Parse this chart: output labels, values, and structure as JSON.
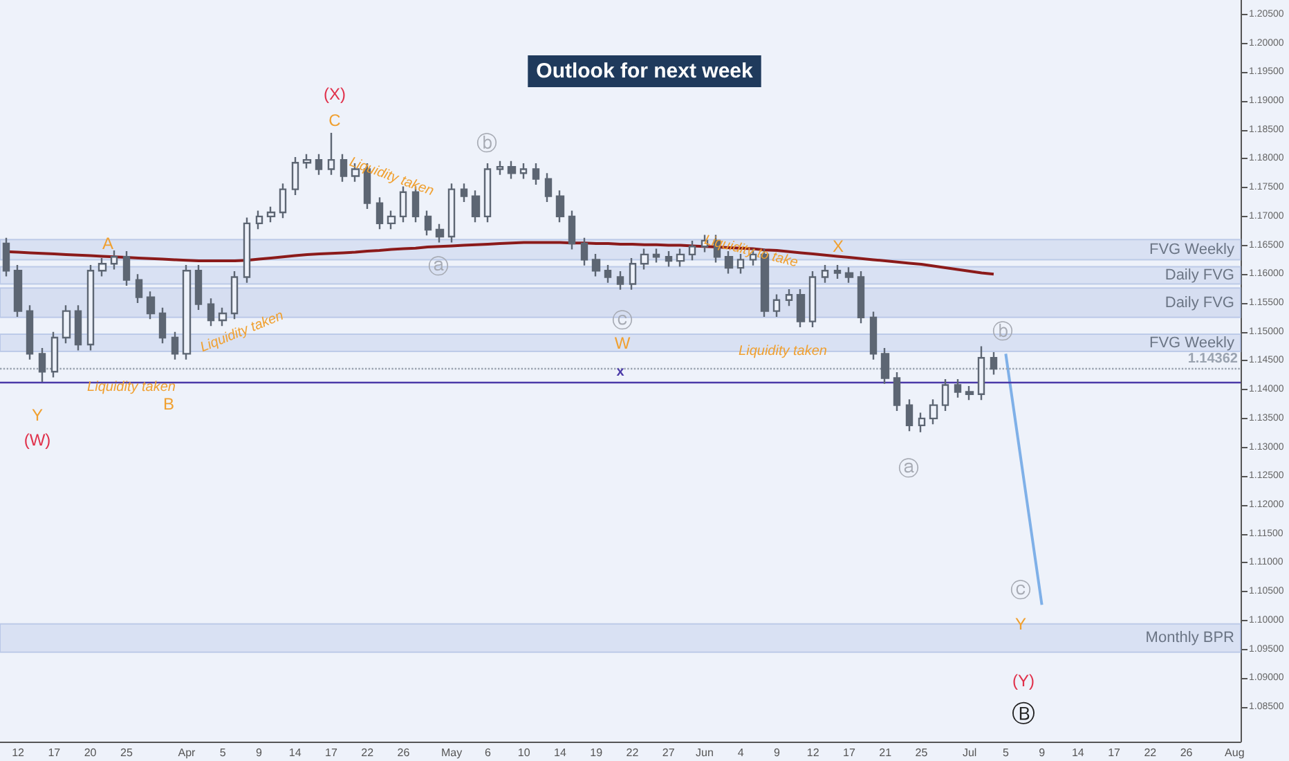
{
  "chart_data": {
    "type": "candlestick",
    "title": "Outlook for next week",
    "color": "#5d6673",
    "categories": [
      null,
      "12",
      null,
      null,
      "17",
      null,
      null,
      "20",
      null,
      null,
      "25",
      null,
      null,
      null,
      null,
      "Apr",
      null,
      null,
      "5",
      null,
      null,
      "9",
      null,
      null,
      "14",
      null,
      null,
      "17",
      null,
      null,
      "22",
      null,
      null,
      "26",
      null,
      null,
      null,
      "May",
      null,
      null,
      "6",
      null,
      null,
      "10",
      null,
      null,
      "14",
      null,
      null,
      "19",
      null,
      null,
      "22",
      null,
      null,
      "27",
      null,
      null,
      "Jun",
      null,
      null,
      "4",
      null,
      null,
      "9",
      null,
      null,
      "12",
      null,
      null,
      "17",
      null,
      null,
      "21",
      null,
      null,
      "25",
      null,
      null,
      null,
      "Jul",
      null,
      null,
      "5",
      null,
      null,
      "9",
      null,
      null,
      "14",
      null,
      null,
      "17",
      null,
      null,
      "22",
      null,
      null,
      "26",
      null,
      null,
      null,
      "Aug"
    ],
    "ohlc": [
      [
        1.1653,
        1.1663,
        1.1596,
        1.1606
      ],
      [
        1.1606,
        1.1616,
        1.1526,
        1.1536
      ],
      [
        1.1536,
        1.1546,
        1.1452,
        1.1462
      ],
      [
        1.1462,
        1.1472,
        1.1413,
        1.1431
      ],
      [
        1.1431,
        1.15,
        1.1421,
        1.149
      ],
      [
        1.149,
        1.1546,
        1.148,
        1.1536
      ],
      [
        1.1536,
        1.1546,
        1.1468,
        1.1478
      ],
      [
        1.1478,
        1.1616,
        1.1468,
        1.1606
      ],
      [
        1.1606,
        1.1628,
        1.1596,
        1.1618
      ],
      [
        1.1618,
        1.1641,
        1.1608,
        1.163
      ],
      [
        1.163,
        1.164,
        1.158,
        1.159
      ],
      [
        1.159,
        1.16,
        1.155,
        1.156
      ],
      [
        1.156,
        1.157,
        1.1522,
        1.1532
      ],
      [
        1.1532,
        1.1542,
        1.148,
        1.149
      ],
      [
        1.149,
        1.15,
        1.1452,
        1.1462
      ],
      [
        1.1462,
        1.1616,
        1.1452,
        1.1606
      ],
      [
        1.1606,
        1.1616,
        1.1538,
        1.1548
      ],
      [
        1.1548,
        1.1558,
        1.151,
        1.152
      ],
      [
        1.152,
        1.1542,
        1.151,
        1.1532
      ],
      [
        1.1532,
        1.1605,
        1.1522,
        1.1595
      ],
      [
        1.1595,
        1.1698,
        1.1585,
        1.1688
      ],
      [
        1.1688,
        1.171,
        1.1678,
        1.17
      ],
      [
        1.17,
        1.1717,
        1.169,
        1.1707
      ],
      [
        1.1707,
        1.1757,
        1.1697,
        1.1747
      ],
      [
        1.1747,
        1.1803,
        1.1737,
        1.1793
      ],
      [
        1.1793,
        1.1808,
        1.1783,
        1.1798
      ],
      [
        1.1798,
        1.1808,
        1.1772,
        1.1782
      ],
      [
        1.1782,
        1.1845,
        1.1772,
        1.1798
      ],
      [
        1.1798,
        1.1808,
        1.176,
        1.177
      ],
      [
        1.177,
        1.1792,
        1.176,
        1.1782
      ],
      [
        1.1782,
        1.1792,
        1.1713,
        1.1723
      ],
      [
        1.1723,
        1.1733,
        1.1678,
        1.1688
      ],
      [
        1.1688,
        1.171,
        1.1678,
        1.17
      ],
      [
        1.17,
        1.1752,
        1.169,
        1.1742
      ],
      [
        1.1742,
        1.1752,
        1.169,
        1.17
      ],
      [
        1.17,
        1.171,
        1.1667,
        1.1677
      ],
      [
        1.1677,
        1.1687,
        1.1655,
        1.1665
      ],
      [
        1.1665,
        1.1757,
        1.1655,
        1.1747
      ],
      [
        1.1747,
        1.1757,
        1.1725,
        1.1735
      ],
      [
        1.1735,
        1.1745,
        1.169,
        1.17
      ],
      [
        1.17,
        1.1792,
        1.169,
        1.1782
      ],
      [
        1.1782,
        1.1796,
        1.1772,
        1.1786
      ],
      [
        1.1786,
        1.1796,
        1.1765,
        1.1775
      ],
      [
        1.1775,
        1.1792,
        1.1765,
        1.1782
      ],
      [
        1.1782,
        1.1792,
        1.1755,
        1.1765
      ],
      [
        1.1765,
        1.1775,
        1.1725,
        1.1735
      ],
      [
        1.1735,
        1.1745,
        1.169,
        1.17
      ],
      [
        1.17,
        1.171,
        1.1643,
        1.1653
      ],
      [
        1.1653,
        1.1663,
        1.1615,
        1.1625
      ],
      [
        1.1625,
        1.1635,
        1.1596,
        1.1606
      ],
      [
        1.1606,
        1.1616,
        1.1585,
        1.1595
      ],
      [
        1.1595,
        1.1605,
        1.1573,
        1.1583
      ],
      [
        1.1583,
        1.1628,
        1.1573,
        1.1618
      ],
      [
        1.1618,
        1.1644,
        1.1608,
        1.1634
      ],
      [
        1.1634,
        1.1644,
        1.162,
        1.163
      ],
      [
        1.163,
        1.164,
        1.1613,
        1.1623
      ],
      [
        1.1623,
        1.1644,
        1.1613,
        1.1634
      ],
      [
        1.1634,
        1.1658,
        1.1624,
        1.1648
      ],
      [
        1.1648,
        1.1668,
        1.1638,
        1.1658
      ],
      [
        1.1658,
        1.1668,
        1.162,
        1.163
      ],
      [
        1.163,
        1.164,
        1.1601,
        1.1611
      ],
      [
        1.1611,
        1.1635,
        1.1601,
        1.1625
      ],
      [
        1.1625,
        1.1644,
        1.1615,
        1.1634
      ],
      [
        1.1634,
        1.1644,
        1.1526,
        1.1536
      ],
      [
        1.1536,
        1.1565,
        1.1526,
        1.1555
      ],
      [
        1.1555,
        1.1574,
        1.1545,
        1.1564
      ],
      [
        1.1564,
        1.1574,
        1.1508,
        1.1518
      ],
      [
        1.1518,
        1.1605,
        1.1508,
        1.1595
      ],
      [
        1.1595,
        1.1616,
        1.1585,
        1.1606
      ],
      [
        1.1606,
        1.1616,
        1.1592,
        1.1602
      ],
      [
        1.1602,
        1.1612,
        1.1585,
        1.1595
      ],
      [
        1.1595,
        1.1605,
        1.1515,
        1.1525
      ],
      [
        1.1525,
        1.1535,
        1.1452,
        1.1462
      ],
      [
        1.1462,
        1.1472,
        1.141,
        1.142
      ],
      [
        1.142,
        1.143,
        1.1363,
        1.1373
      ],
      [
        1.1373,
        1.1383,
        1.1328,
        1.1338
      ],
      [
        1.1338,
        1.136,
        1.1326,
        1.135
      ],
      [
        1.135,
        1.1383,
        1.134,
        1.1373
      ],
      [
        1.1373,
        1.1418,
        1.1363,
        1.1408
      ],
      [
        1.1408,
        1.1418,
        1.1386,
        1.1396
      ],
      [
        1.1396,
        1.1406,
        1.1382,
        1.1392
      ],
      [
        1.1392,
        1.1475,
        1.1382,
        1.1455
      ],
      [
        1.1455,
        1.1465,
        1.1426,
        1.1436
      ],
      null,
      null,
      null,
      null,
      null,
      null,
      null,
      null,
      null,
      null,
      null,
      null,
      null,
      null,
      null,
      null,
      null,
      null,
      null,
      null
    ],
    "series": [
      {
        "type": "line",
        "color": "#8b1a1a",
        "values": [
          1.1639,
          1.1638,
          1.1637,
          1.1636,
          1.1635,
          1.1634,
          1.1633,
          1.1632,
          1.1631,
          1.163,
          1.1629,
          1.1628,
          1.1627,
          1.1626,
          1.1625,
          1.1624,
          1.1623,
          1.1623,
          1.1623,
          1.1623,
          1.1624,
          1.1626,
          1.1628,
          1.163,
          1.1632,
          1.1634,
          1.1635,
          1.1636,
          1.1637,
          1.1638,
          1.164,
          1.1641,
          1.1643,
          1.1644,
          1.1645,
          1.1647,
          1.1648,
          1.1649,
          1.165,
          1.1651,
          1.1652,
          1.1653,
          1.1654,
          1.1655,
          1.1655,
          1.1655,
          1.1655,
          1.1654,
          1.1654,
          1.1653,
          1.1653,
          1.1652,
          1.1652,
          1.1651,
          1.1651,
          1.165,
          1.165,
          1.1649,
          1.1648,
          1.1647,
          1.1646,
          1.1645,
          1.1644,
          1.1642,
          1.1641,
          1.1639,
          1.1637,
          1.1635,
          1.1633,
          1.1631,
          1.1629,
          1.1627,
          1.1625,
          1.1623,
          1.1621,
          1.1619,
          1.1617,
          1.1614,
          1.1611,
          1.1608,
          1.1605,
          1.1602,
          1.16,
          null,
          null,
          null,
          null,
          null,
          null,
          null,
          null,
          null,
          null,
          null,
          null,
          null,
          null,
          null,
          null,
          null,
          null,
          null,
          null
        ]
      },
      {
        "type": "line",
        "color": "#7fb0e8",
        "values": [
          null,
          null,
          null,
          null,
          null,
          null,
          null,
          null,
          null,
          null,
          null,
          null,
          null,
          null,
          null,
          null,
          null,
          null,
          null,
          null,
          null,
          null,
          null,
          null,
          null,
          null,
          null,
          null,
          null,
          null,
          null,
          null,
          null,
          null,
          null,
          null,
          null,
          null,
          null,
          null,
          null,
          null,
          null,
          null,
          null,
          null,
          null,
          null,
          null,
          null,
          null,
          null,
          null,
          null,
          null,
          null,
          null,
          null,
          null,
          null,
          null,
          null,
          null,
          null,
          null,
          null,
          null,
          null,
          null,
          null,
          null,
          null,
          null,
          null,
          null,
          null,
          null,
          null,
          null,
          null,
          null,
          null,
          null,
          1.1462,
          1.1317,
          1.1172,
          1.1027,
          null,
          null,
          null,
          null,
          null,
          null,
          null,
          null,
          null,
          null,
          null,
          null,
          null,
          null,
          null,
          null
        ]
      }
    ],
    "ylim": [
      1.079,
      1.2075
    ],
    "yticks": [
      {
        "value": 1.085,
        "label": "1.08500"
      },
      {
        "value": 1.09,
        "label": "1.09000"
      },
      {
        "value": 1.095,
        "label": "1.09500"
      },
      {
        "value": 1.1,
        "label": "1.10000"
      },
      {
        "value": 1.105,
        "label": "1.10500"
      },
      {
        "value": 1.11,
        "label": "1.11000"
      },
      {
        "value": 1.115,
        "label": "1.11500"
      },
      {
        "value": 1.12,
        "label": "1.12000"
      },
      {
        "value": 1.125,
        "label": "1.12500"
      },
      {
        "value": 1.13,
        "label": "1.13000"
      },
      {
        "value": 1.135,
        "label": "1.13500"
      },
      {
        "value": 1.14,
        "label": "1.14000"
      },
      {
        "value": 1.145,
        "label": "1.14500"
      },
      {
        "value": 1.15,
        "label": "1.15000"
      },
      {
        "value": 1.155,
        "label": "1.15500"
      },
      {
        "value": 1.16,
        "label": "1.16000"
      },
      {
        "value": 1.165,
        "label": "1.16500"
      },
      {
        "value": 1.17,
        "label": "1.17000"
      },
      {
        "value": 1.175,
        "label": "1.17500"
      },
      {
        "value": 1.18,
        "label": "1.18000"
      },
      {
        "value": 1.185,
        "label": "1.18500"
      },
      {
        "value": 1.19,
        "label": "1.19000"
      },
      {
        "value": 1.195,
        "label": "1.19500"
      },
      {
        "value": 1.2,
        "label": "1.20000"
      },
      {
        "value": 1.205,
        "label": "1.20500"
      }
    ],
    "bands": [
      {
        "axis": "y",
        "from": 1.0945,
        "to": 1.0994,
        "label": "Monthly BPR",
        "color": "#c9d4ec"
      },
      {
        "axis": "y",
        "from": 1.1466,
        "to": 1.1496,
        "label": "FVG Weekly",
        "color": "#c9d4ec"
      },
      {
        "axis": "y",
        "from": 1.1525,
        "to": 1.1576,
        "label": "Daily FVG",
        "color": "#c2cdea"
      },
      {
        "axis": "y",
        "from": 1.1583,
        "to": 1.1613,
        "label": "Daily FVG",
        "color": "#c9d4ec"
      },
      {
        "axis": "y",
        "from": 1.1625,
        "to": 1.166,
        "label": "FVG Weekly",
        "color": "#c9d4ec"
      }
    ],
    "ref_lines": [
      {
        "axis": "y",
        "value": 1.14362,
        "label": "1.14362",
        "color": "#9aa3b0",
        "line_style": "dotted"
      },
      {
        "axis": "y",
        "value": 1.1413,
        "label": "x",
        "color": "#4b3aa8",
        "line_style": "solid"
      }
    ],
    "annotations": [
      "(X)",
      "C",
      "A",
      "Y",
      "(W)",
      "B",
      "Liquidity taken",
      "Liquidity taken",
      "Liquidity taken",
      "ⓑ",
      "ⓐ",
      "ⓒ",
      "W",
      "Liquidity to take",
      "X",
      "Liquidity taken",
      "ⓑ",
      "ⓐ",
      "ⓒ",
      "Y",
      "(Y)",
      "Ⓑ"
    ],
    "grid": false,
    "marker": "none"
  }
}
